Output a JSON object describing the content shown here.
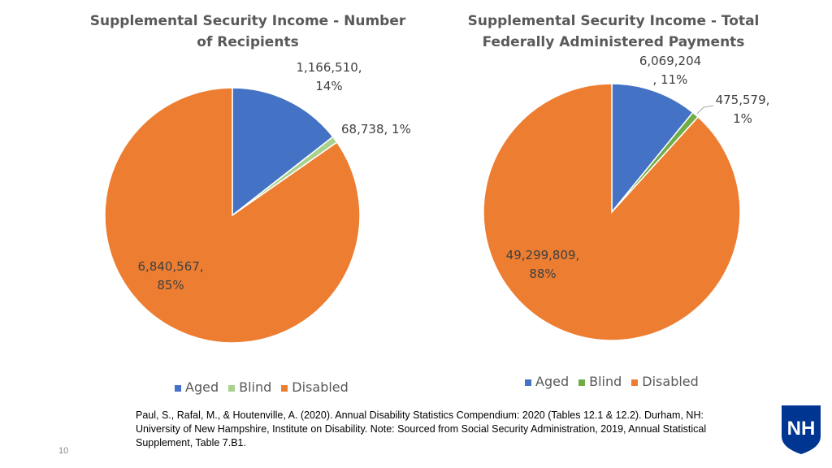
{
  "chart_data": [
    {
      "type": "pie",
      "title": "Supplemental Security Income - Number of Recipients",
      "categories": [
        "Aged",
        "Blind",
        "Disabled"
      ],
      "values": [
        1166510,
        68738,
        6840567
      ],
      "labels": [
        "1,166,510, 14%",
        "68,738, 1%",
        "6,840,567, 85%"
      ],
      "colors": [
        "#4472c4",
        "#a9d18e",
        "#ed7d31"
      ],
      "legend": "bottom"
    },
    {
      "type": "pie",
      "title": "Supplemental Security Income - Total Federally Administered Payments",
      "categories": [
        "Aged",
        "Blind",
        "Disabled"
      ],
      "values": [
        6069204,
        475579,
        49299809
      ],
      "labels": [
        "6,069,204, 11%",
        "475,579, 1%",
        "49,299,809, 88%"
      ],
      "colors": [
        "#4472c4",
        "#70ad47",
        "#ed7d31"
      ],
      "legend": "bottom"
    }
  ],
  "text": {
    "t1a": "Supplemental Security Income - Number",
    "t1b": "of Recipients",
    "t2a": "Supplemental Security Income - Total",
    "t2b": "Federally Administered Payments",
    "l1a1": "1,166,510,",
    "l1a2": "14%",
    "l1b": "68,738, 1%",
    "l1c1": "6,840,567,",
    "l1c2": "85%",
    "l2a1": "6,069,204",
    "l2a2": ", 11%",
    "l2b1": "475,579,",
    "l2b2": "1%",
    "l2c1": "49,299,809,",
    "l2c2": "88%",
    "citation": "Paul, S., Rafal, M., & Houtenville, A. (2020). Annual Disability Statistics Compendium: 2020 (Tables 12.1 & 12.2). Durham, NH: University of New Hampshire, Institute on Disability. Note: Sourced from Social Security Administration, 2019, Annual Statistical Supplement, Table 7.B1.",
    "page": "10",
    "logo": "NH"
  }
}
